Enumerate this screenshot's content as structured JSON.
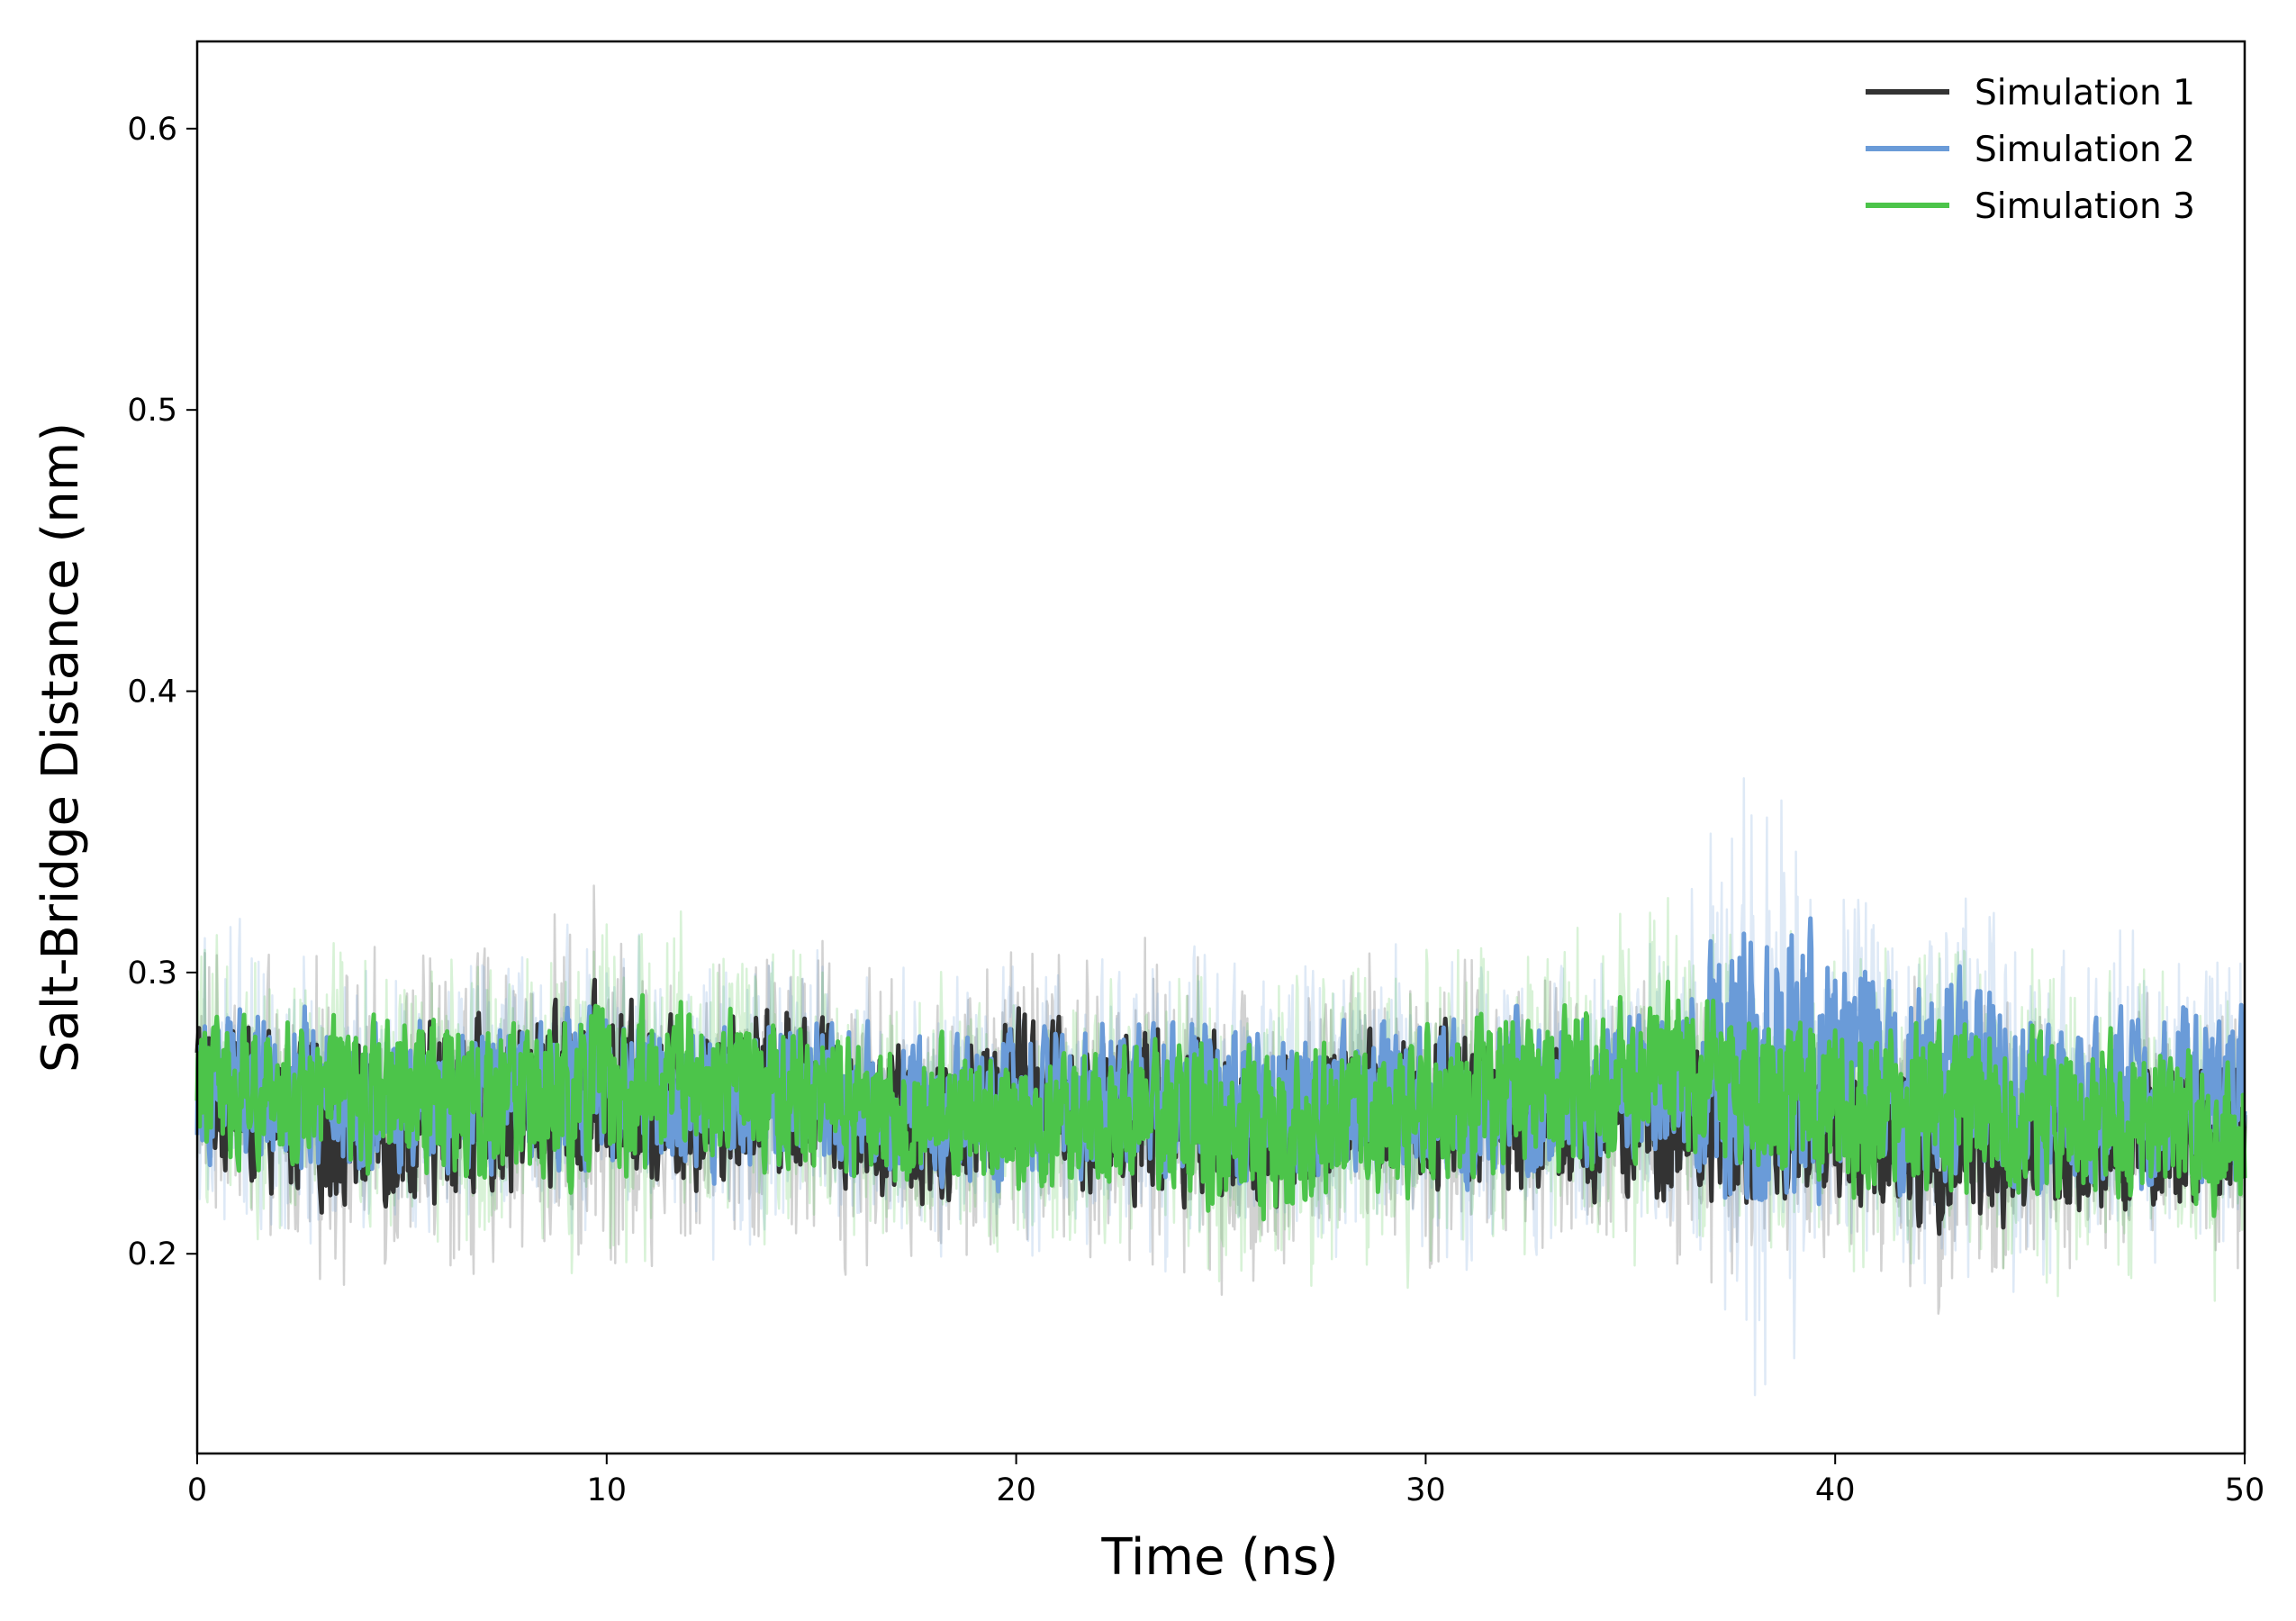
{
  "chart_data": {
    "type": "line",
    "title": "",
    "xlabel": "Time (ns)",
    "ylabel": "Salt-Bridge Distance (nm)",
    "xlim": [
      0,
      50
    ],
    "ylim": [
      0.129,
      0.631
    ],
    "xticks": [
      0,
      10,
      20,
      30,
      40,
      50
    ],
    "xtick_labels": [
      "0",
      "10",
      "20",
      "30",
      "40",
      "50"
    ],
    "yticks": [
      0.2,
      0.3,
      0.4,
      0.5,
      0.6
    ],
    "ytick_labels": [
      "0.2",
      "0.3",
      "0.4",
      "0.5",
      "0.6"
    ],
    "grid": false,
    "legend_position": "top-right",
    "series": [
      {
        "name": "Simulation 1",
        "color": "#333333",
        "x": [
          0,
          2,
          4,
          6,
          8,
          10,
          12,
          14,
          16,
          18,
          20,
          22,
          24,
          26,
          28,
          30,
          32,
          34,
          36,
          38,
          40,
          42,
          44,
          46,
          48,
          50
        ],
        "mean": [
          0.262,
          0.248,
          0.246,
          0.25,
          0.255,
          0.258,
          0.252,
          0.262,
          0.252,
          0.243,
          0.258,
          0.25,
          0.252,
          0.243,
          0.25,
          0.254,
          0.25,
          0.245,
          0.248,
          0.245,
          0.245,
          0.24,
          0.24,
          0.238,
          0.242,
          0.245
        ],
        "min": [
          0.22,
          0.212,
          0.21,
          0.202,
          0.21,
          0.205,
          0.215,
          0.212,
          0.208,
          0.212,
          0.215,
          0.21,
          0.205,
          0.2,
          0.21,
          0.208,
          0.205,
          0.215,
          0.215,
          0.205,
          0.212,
          0.2,
          0.195,
          0.198,
          0.205,
          0.205
        ],
        "max": [
          0.3,
          0.29,
          0.295,
          0.298,
          0.305,
          0.305,
          0.3,
          0.305,
          0.295,
          0.288,
          0.302,
          0.295,
          0.298,
          0.285,
          0.29,
          0.3,
          0.295,
          0.29,
          0.298,
          0.29,
          0.29,
          0.286,
          0.285,
          0.28,
          0.285,
          0.29
        ]
      },
      {
        "name": "Simulation 2",
        "color": "#6a9bd8",
        "x": [
          0,
          2,
          4,
          6,
          8,
          10,
          12,
          14,
          16,
          18,
          20,
          22,
          24,
          26,
          28,
          30,
          32,
          34,
          36,
          38,
          40,
          42,
          44,
          46,
          48,
          50
        ],
        "mean": [
          0.265,
          0.26,
          0.255,
          0.258,
          0.255,
          0.26,
          0.255,
          0.26,
          0.255,
          0.252,
          0.252,
          0.258,
          0.255,
          0.25,
          0.252,
          0.255,
          0.255,
          0.255,
          0.26,
          0.262,
          0.265,
          0.262,
          0.258,
          0.25,
          0.255,
          0.258
        ],
        "min": [
          0.225,
          0.23,
          0.215,
          0.218,
          0.22,
          0.215,
          0.212,
          0.218,
          0.22,
          0.215,
          0.215,
          0.22,
          0.215,
          0.205,
          0.212,
          0.215,
          0.21,
          0.215,
          0.22,
          0.22,
          0.212,
          0.21,
          0.205,
          0.205,
          0.212,
          0.208
        ],
        "max": [
          0.31,
          0.318,
          0.298,
          0.3,
          0.298,
          0.3,
          0.295,
          0.3,
          0.295,
          0.29,
          0.295,
          0.305,
          0.3,
          0.29,
          0.295,
          0.298,
          0.3,
          0.3,
          0.305,
          0.42,
          0.338,
          0.32,
          0.31,
          0.3,
          0.305,
          0.3
        ]
      },
      {
        "name": "Simulation 3",
        "color": "#4cc44a",
        "x": [
          0,
          2,
          4,
          6,
          8,
          10,
          12,
          14,
          16,
          18,
          20,
          22,
          24,
          26,
          28,
          30,
          32,
          34,
          36,
          38,
          40,
          42,
          44,
          46,
          48,
          50
        ],
        "mean": [
          0.262,
          0.258,
          0.255,
          0.258,
          0.252,
          0.255,
          0.262,
          0.26,
          0.252,
          0.25,
          0.245,
          0.25,
          0.248,
          0.24,
          0.25,
          0.252,
          0.258,
          0.26,
          0.265,
          0.258,
          0.252,
          0.25,
          0.25,
          0.248,
          0.245,
          0.242
        ],
        "min": [
          0.225,
          0.22,
          0.215,
          0.21,
          0.212,
          0.205,
          0.22,
          0.215,
          0.21,
          0.212,
          0.205,
          0.212,
          0.208,
          0.195,
          0.205,
          0.212,
          0.215,
          0.22,
          0.22,
          0.215,
          0.21,
          0.205,
          0.2,
          0.205,
          0.205,
          0.205
        ],
        "max": [
          0.3,
          0.298,
          0.295,
          0.298,
          0.292,
          0.305,
          0.3,
          0.298,
          0.292,
          0.29,
          0.29,
          0.29,
          0.292,
          0.285,
          0.29,
          0.298,
          0.3,
          0.31,
          0.318,
          0.308,
          0.3,
          0.3,
          0.298,
          0.292,
          0.29,
          0.29
        ]
      }
    ]
  }
}
